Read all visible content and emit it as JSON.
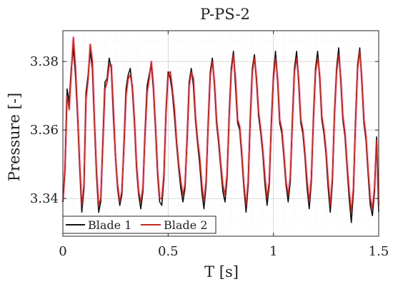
{
  "chart_data": {
    "type": "line",
    "title": "P-PS-2",
    "xlabel": "T [s]",
    "ylabel": "Pressure [-]",
    "xlim": [
      0,
      1.5
    ],
    "ylim": [
      3.329,
      3.389
    ],
    "xticks": [
      0,
      0.5,
      1,
      1.5
    ],
    "xtick_labels": [
      "0",
      "0.5",
      "1",
      "1.5"
    ],
    "yticks": [
      3.34,
      3.36,
      3.38
    ],
    "ytick_labels": [
      "3.34",
      "3.36",
      "3.38"
    ],
    "grid": true,
    "minor_grid": true,
    "legend_position": "bottom-left",
    "colors": {
      "blade1": "#111111",
      "blade2": "#c0281c",
      "blade2_shadow": "#ff66aa"
    },
    "x": [
      0,
      0.01,
      0.02,
      0.03,
      0.04,
      0.05,
      0.06,
      0.07,
      0.08,
      0.09,
      0.1,
      0.11,
      0.12,
      0.13,
      0.14,
      0.15,
      0.16,
      0.17,
      0.18,
      0.19,
      0.2,
      0.21,
      0.22,
      0.23,
      0.24,
      0.25,
      0.26,
      0.27,
      0.28,
      0.29,
      0.3,
      0.31,
      0.32,
      0.33,
      0.34,
      0.35,
      0.36,
      0.37,
      0.38,
      0.39,
      0.4,
      0.41,
      0.42,
      0.43,
      0.44,
      0.45,
      0.46,
      0.47,
      0.48,
      0.49,
      0.5,
      0.51,
      0.52,
      0.53,
      0.54,
      0.55,
      0.56,
      0.57,
      0.58,
      0.59,
      0.6,
      0.61,
      0.62,
      0.63,
      0.64,
      0.65,
      0.66,
      0.67,
      0.68,
      0.69,
      0.7,
      0.71,
      0.72,
      0.73,
      0.74,
      0.75,
      0.76,
      0.77,
      0.78,
      0.79,
      0.8,
      0.81,
      0.82,
      0.83,
      0.84,
      0.85,
      0.86,
      0.87,
      0.88,
      0.89,
      0.9,
      0.91,
      0.92,
      0.93,
      0.94,
      0.95,
      0.96,
      0.97,
      0.98,
      0.99,
      1,
      1.01,
      1.02,
      1.03,
      1.04,
      1.05,
      1.06,
      1.07,
      1.08,
      1.09,
      1.1,
      1.11,
      1.12,
      1.13,
      1.14,
      1.15,
      1.16,
      1.17,
      1.18,
      1.19,
      1.2,
      1.21,
      1.22,
      1.23,
      1.24,
      1.25,
      1.26,
      1.27,
      1.28,
      1.29,
      1.3,
      1.31,
      1.32,
      1.33,
      1.34,
      1.35,
      1.36,
      1.37,
      1.38,
      1.39,
      1.4,
      1.41,
      1.42,
      1.43,
      1.44,
      1.45,
      1.46,
      1.47,
      1.48,
      1.49,
      1.5
    ],
    "series": [
      {
        "name": "Blade 1",
        "values": [
          3.339,
          3.348,
          3.372,
          3.368,
          3.378,
          3.384,
          3.376,
          3.364,
          3.349,
          3.336,
          3.343,
          3.371,
          3.376,
          3.383,
          3.378,
          3.362,
          3.347,
          3.336,
          3.339,
          3.357,
          3.374,
          3.375,
          3.381,
          3.378,
          3.364,
          3.352,
          3.343,
          3.338,
          3.341,
          3.356,
          3.372,
          3.376,
          3.378,
          3.372,
          3.362,
          3.349,
          3.341,
          3.337,
          3.342,
          3.359,
          3.373,
          3.376,
          3.379,
          3.372,
          3.36,
          3.347,
          3.339,
          3.338,
          3.346,
          3.366,
          3.377,
          3.375,
          3.371,
          3.364,
          3.356,
          3.349,
          3.343,
          3.339,
          3.343,
          3.358,
          3.374,
          3.378,
          3.373,
          3.363,
          3.356,
          3.35,
          3.342,
          3.337,
          3.344,
          3.362,
          3.377,
          3.381,
          3.373,
          3.362,
          3.356,
          3.349,
          3.342,
          3.339,
          3.346,
          3.365,
          3.378,
          3.383,
          3.373,
          3.362,
          3.36,
          3.352,
          3.343,
          3.336,
          3.344,
          3.364,
          3.378,
          3.382,
          3.374,
          3.364,
          3.359,
          3.353,
          3.344,
          3.338,
          3.344,
          3.362,
          3.376,
          3.383,
          3.374,
          3.362,
          3.359,
          3.352,
          3.344,
          3.339,
          3.345,
          3.363,
          3.378,
          3.383,
          3.374,
          3.362,
          3.359,
          3.352,
          3.343,
          3.337,
          3.345,
          3.364,
          3.378,
          3.383,
          3.375,
          3.363,
          3.359,
          3.353,
          3.343,
          3.336,
          3.345,
          3.365,
          3.378,
          3.384,
          3.374,
          3.363,
          3.358,
          3.349,
          3.34,
          3.333,
          3.342,
          3.363,
          3.379,
          3.384,
          3.374,
          3.362,
          3.357,
          3.347,
          3.338,
          3.335,
          3.342,
          3.358,
          3.336
        ]
      },
      {
        "name": "Blade 2",
        "values": [
          3.339,
          3.349,
          3.37,
          3.366,
          3.377,
          3.387,
          3.378,
          3.365,
          3.35,
          3.338,
          3.344,
          3.369,
          3.375,
          3.385,
          3.38,
          3.363,
          3.348,
          3.338,
          3.34,
          3.356,
          3.372,
          3.374,
          3.379,
          3.379,
          3.366,
          3.352,
          3.344,
          3.339,
          3.342,
          3.355,
          3.37,
          3.375,
          3.376,
          3.373,
          3.363,
          3.35,
          3.342,
          3.339,
          3.343,
          3.358,
          3.371,
          3.375,
          3.38,
          3.373,
          3.361,
          3.348,
          3.34,
          3.34,
          3.347,
          3.365,
          3.376,
          3.377,
          3.372,
          3.366,
          3.357,
          3.35,
          3.345,
          3.341,
          3.344,
          3.357,
          3.373,
          3.377,
          3.375,
          3.364,
          3.357,
          3.352,
          3.344,
          3.339,
          3.345,
          3.361,
          3.376,
          3.38,
          3.374,
          3.363,
          3.357,
          3.35,
          3.344,
          3.341,
          3.347,
          3.364,
          3.377,
          3.382,
          3.375,
          3.363,
          3.361,
          3.353,
          3.344,
          3.338,
          3.345,
          3.363,
          3.377,
          3.381,
          3.375,
          3.365,
          3.36,
          3.354,
          3.346,
          3.34,
          3.345,
          3.361,
          3.375,
          3.381,
          3.375,
          3.363,
          3.36,
          3.353,
          3.345,
          3.341,
          3.346,
          3.362,
          3.377,
          3.381,
          3.375,
          3.363,
          3.36,
          3.353,
          3.345,
          3.339,
          3.346,
          3.363,
          3.377,
          3.381,
          3.376,
          3.364,
          3.36,
          3.354,
          3.345,
          3.338,
          3.346,
          3.364,
          3.377,
          3.382,
          3.375,
          3.364,
          3.359,
          3.35,
          3.342,
          3.336,
          3.343,
          3.362,
          3.378,
          3.383,
          3.375,
          3.363,
          3.358,
          3.348,
          3.34,
          3.337,
          3.343,
          3.357,
          3.338
        ]
      }
    ]
  }
}
